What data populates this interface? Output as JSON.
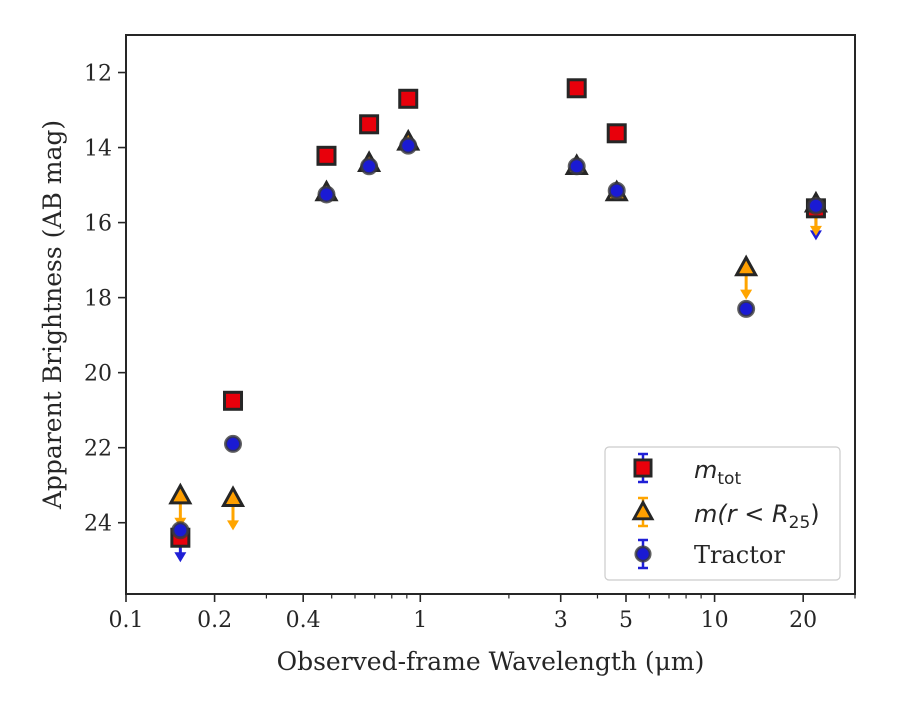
{
  "chart_data": {
    "type": "scatter",
    "xlabel": "Observed-frame Wavelength (μm)",
    "ylabel": "Apparent Brightness (AB mag)",
    "x_scale": "log",
    "xlim": [
      0.1,
      30
    ],
    "ylim": [
      25.9,
      11.0
    ],
    "y_inverted": true,
    "x_ticks": [
      0.1,
      0.2,
      0.4,
      1,
      3,
      5,
      10,
      20
    ],
    "x_tick_labels": [
      "0.1",
      "0.2",
      "0.4",
      "1",
      "3",
      "5",
      "10",
      "20"
    ],
    "y_ticks": [
      12,
      14,
      16,
      18,
      20,
      22,
      24
    ],
    "y_tick_labels": [
      "12",
      "14",
      "16",
      "18",
      "20",
      "22",
      "24"
    ],
    "legend_position": "lower right",
    "series": [
      {
        "name": "m_tot",
        "legend": {
          "symbol": "m",
          "subscript": "tot"
        },
        "marker": "square",
        "color": "#e8000b",
        "edge_color": "#262626",
        "arrow_color": "#1f1fd6",
        "points": [
          {
            "x": 0.153,
            "y": 24.4
          },
          {
            "x": 0.231,
            "y": 20.75
          },
          {
            "x": 0.48,
            "y": 14.22
          },
          {
            "x": 0.67,
            "y": 13.38
          },
          {
            "x": 0.91,
            "y": 12.7
          },
          {
            "x": 3.4,
            "y": 12.42
          },
          {
            "x": 4.65,
            "y": 13.62
          },
          {
            "x": 22.1,
            "y": 15.62,
            "upper_limit": true
          }
        ]
      },
      {
        "name": "m(r<R25)",
        "legend": {
          "symbol": "m(r < R",
          "subscript": "25",
          "suffix": ")"
        },
        "marker": "triangle",
        "color": "#ff9f00",
        "edge_color": "#262626",
        "arrow_color": "#ffa500",
        "points": [
          {
            "x": 0.153,
            "y": 23.28,
            "upper_limit": true
          },
          {
            "x": 0.231,
            "y": 23.35,
            "upper_limit": true
          },
          {
            "x": 0.48,
            "y": 15.2
          },
          {
            "x": 0.67,
            "y": 14.42
          },
          {
            "x": 0.91,
            "y": 13.85
          },
          {
            "x": 3.4,
            "y": 14.5
          },
          {
            "x": 4.65,
            "y": 15.2
          },
          {
            "x": 12.8,
            "y": 17.2,
            "upper_limit": true
          },
          {
            "x": 22.1,
            "y": 15.5,
            "upper_limit": true
          }
        ]
      },
      {
        "name": "Tractor",
        "legend": {
          "text": "Tractor"
        },
        "marker": "circle",
        "color": "#1a1ad4",
        "edge_color": "#3a3a3a",
        "arrow_color": "#1f1fd6",
        "points": [
          {
            "x": 0.153,
            "y": 24.2,
            "upper_limit": true
          },
          {
            "x": 0.231,
            "y": 21.9
          },
          {
            "x": 0.48,
            "y": 15.25
          },
          {
            "x": 0.67,
            "y": 14.5
          },
          {
            "x": 0.91,
            "y": 13.95
          },
          {
            "x": 3.4,
            "y": 14.5
          },
          {
            "x": 4.65,
            "y": 15.15
          },
          {
            "x": 12.8,
            "y": 18.3
          },
          {
            "x": 22.1,
            "y": 15.55
          }
        ]
      }
    ]
  }
}
